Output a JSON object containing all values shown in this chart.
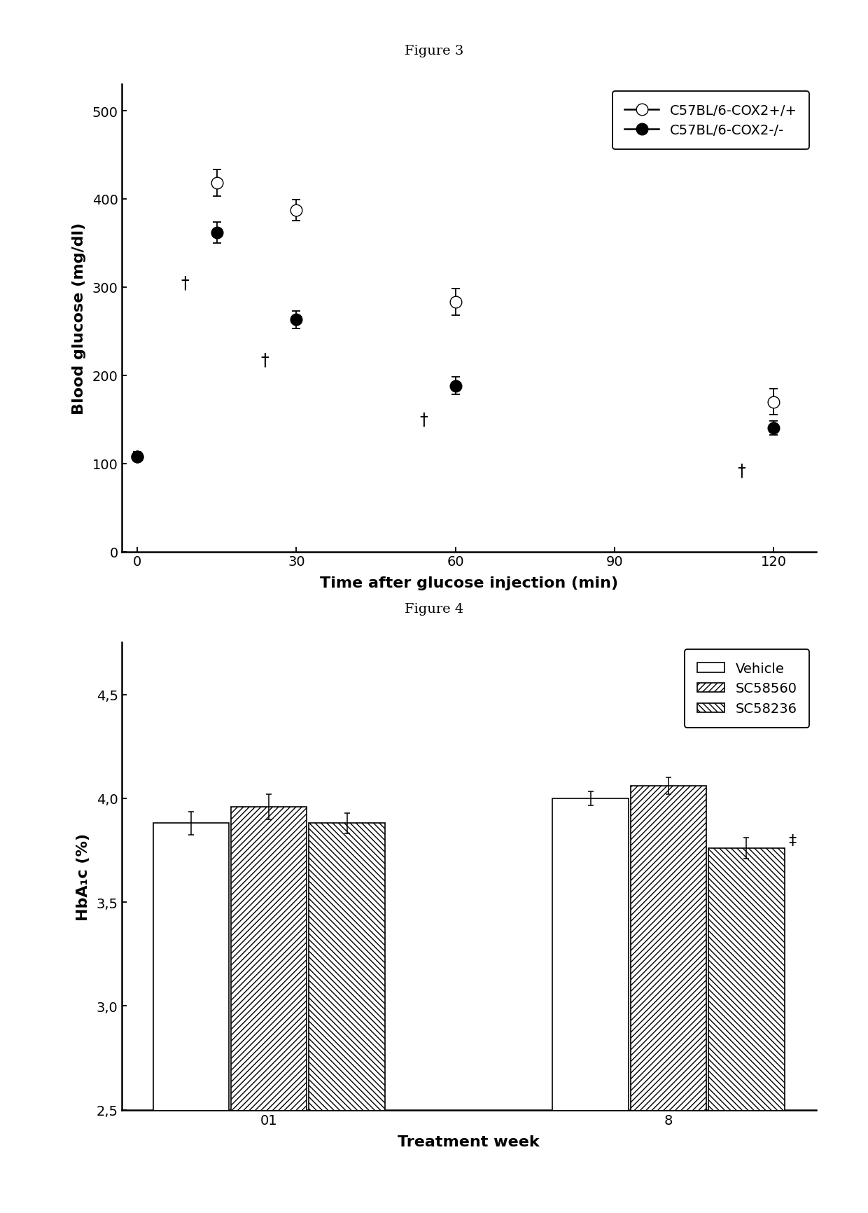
{
  "fig3": {
    "title": "Figure 3",
    "xlabel": "Time after glucose injection (min)",
    "ylabel": "Blood glucose (mg/dl)",
    "x": [
      0,
      15,
      30,
      60,
      120
    ],
    "xticks": [
      0,
      30,
      60,
      90,
      120
    ],
    "xlim": [
      -3,
      128
    ],
    "ylim": [
      0,
      530
    ],
    "yticks": [
      0,
      100,
      200,
      300,
      400,
      500
    ],
    "series": [
      {
        "label": "C57BL/6-COX2+/+",
        "y": [
          108,
          418,
          387,
          283,
          170
        ],
        "yerr": [
          5,
          15,
          12,
          15,
          15
        ],
        "filled": false
      },
      {
        "label": "C57BL/6-COX2-/-",
        "y": [
          108,
          362,
          263,
          188,
          140
        ],
        "yerr": [
          5,
          12,
          10,
          10,
          8
        ],
        "filled": true
      }
    ],
    "daggers": [
      {
        "x_idx": 1,
        "y": 305
      },
      {
        "x_idx": 2,
        "y": 218
      },
      {
        "x_idx": 3,
        "y": 150
      },
      {
        "x_idx": 4,
        "y": 92
      }
    ]
  },
  "fig4": {
    "title": "Figure 4",
    "xlabel": "Treatment week",
    "ylabel": "HbA₁c (%)",
    "xtick_labels": [
      "01",
      "8"
    ],
    "ylim": [
      2.5,
      4.75
    ],
    "yticks": [
      2.5,
      3.0,
      3.5,
      4.0,
      4.5
    ],
    "ytick_labels": [
      "2,5",
      "3,0",
      "3,5",
      "4,0",
      "4,5"
    ],
    "group_centers": [
      0.0,
      1.0
    ],
    "bars": [
      {
        "label": "Vehicle",
        "values": [
          3.88,
          4.0
        ],
        "yerr": [
          0.055,
          0.035
        ],
        "hatch": "",
        "facecolor": "white",
        "edgecolor": "black"
      },
      {
        "label": "SC58560",
        "values": [
          3.96,
          4.06
        ],
        "yerr": [
          0.06,
          0.04
        ],
        "hatch": "////",
        "facecolor": "white",
        "edgecolor": "black"
      },
      {
        "label": "SC58236",
        "values": [
          3.88,
          3.76
        ],
        "yerr": [
          0.05,
          0.05
        ],
        "hatch": "\\\\\\\\",
        "facecolor": "white",
        "edgecolor": "black"
      }
    ],
    "ddagger_group": 1,
    "ddagger_bar": 2,
    "ddagger_y": 3.83
  }
}
